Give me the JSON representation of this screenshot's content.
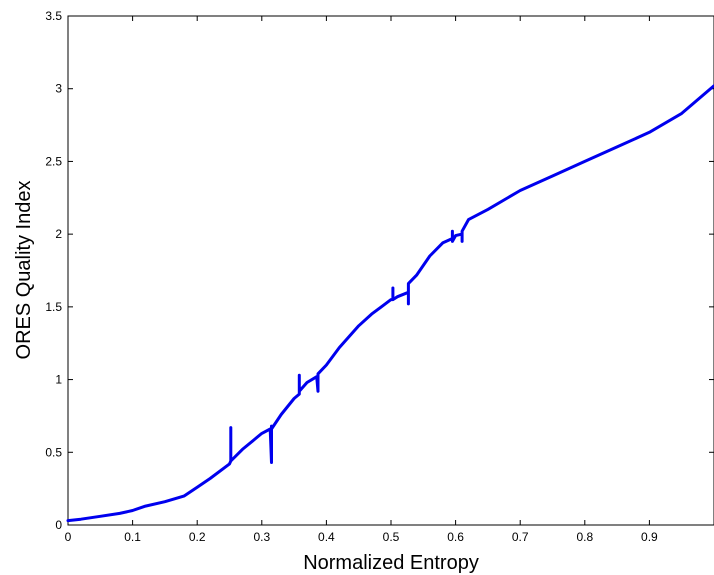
{
  "chart_data": {
    "type": "line",
    "title": "",
    "xlabel": "Normalized Entropy",
    "ylabel": "ORES Quality Index",
    "xlim": [
      0,
      1
    ],
    "ylim": [
      0,
      3.5
    ],
    "grid": false,
    "legend": "none",
    "xticks": [
      "0",
      "0.1",
      "0.2",
      "0.3",
      "0.4",
      "0.5",
      "0.6",
      "0.7",
      "0.8",
      "0.9"
    ],
    "yticks": [
      "0",
      "0.5",
      "1",
      "1.5",
      "2",
      "2.5",
      "3",
      "3.5"
    ],
    "series": [
      {
        "color": "#0000ee",
        "x": [
          0,
          0.02,
          0.05,
          0.08,
          0.1,
          0.12,
          0.15,
          0.18,
          0.2,
          0.22,
          0.25,
          0.252,
          0.252,
          0.252,
          0.27,
          0.3,
          0.313,
          0.315,
          0.315,
          0.315,
          0.33,
          0.35,
          0.358,
          0.358,
          0.358,
          0.37,
          0.385,
          0.387,
          0.387,
          0.387,
          0.4,
          0.42,
          0.45,
          0.47,
          0.5,
          0.503,
          0.503,
          0.503,
          0.51,
          0.527,
          0.527,
          0.527,
          0.54,
          0.56,
          0.58,
          0.595,
          0.595,
          0.595,
          0.6,
          0.61,
          0.61,
          0.61,
          0.62,
          0.65,
          0.7,
          0.75,
          0.8,
          0.85,
          0.9,
          0.95,
          1.0
        ],
        "y": [
          0.03,
          0.04,
          0.06,
          0.08,
          0.1,
          0.13,
          0.16,
          0.2,
          0.26,
          0.32,
          0.42,
          0.44,
          0.67,
          0.44,
          0.52,
          0.63,
          0.66,
          0.43,
          0.68,
          0.66,
          0.76,
          0.87,
          0.9,
          1.03,
          0.92,
          0.98,
          1.02,
          0.92,
          1.03,
          1.04,
          1.1,
          1.22,
          1.37,
          1.45,
          1.55,
          1.55,
          1.63,
          1.55,
          1.57,
          1.6,
          1.52,
          1.66,
          1.72,
          1.85,
          1.94,
          1.97,
          2.02,
          1.95,
          1.99,
          2.0,
          1.95,
          2.02,
          2.1,
          2.17,
          2.3,
          2.4,
          2.5,
          2.6,
          2.7,
          2.83,
          3.02
        ]
      }
    ]
  }
}
